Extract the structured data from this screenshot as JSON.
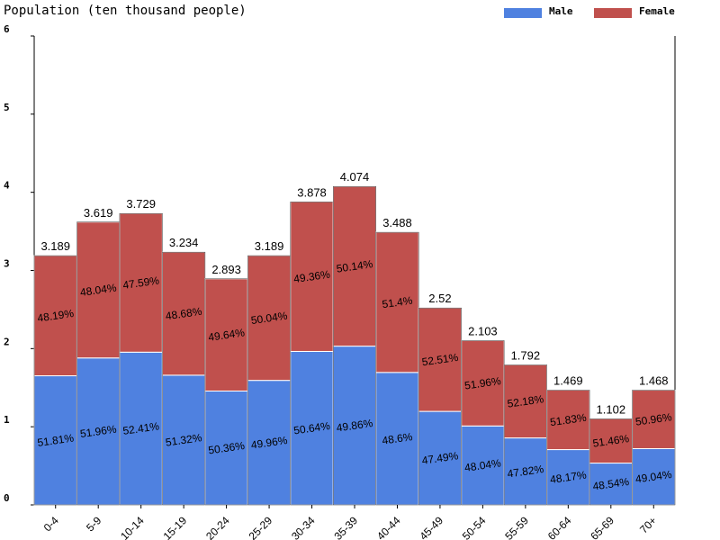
{
  "chart_data": {
    "type": "bar",
    "stacked": true,
    "title": "Population (ten thousand people)",
    "xlabel": "",
    "ylabel": "",
    "ylim": [
      0,
      6
    ],
    "yticks": [
      "0",
      "1",
      "2",
      "3",
      "4",
      "5",
      "6"
    ],
    "categories": [
      "0-4",
      "5-9",
      "10-14",
      "15-19",
      "20-24",
      "25-29",
      "30-34",
      "35-39",
      "40-44",
      "45-49",
      "50-54",
      "55-59",
      "60-64",
      "65-69",
      "70+"
    ],
    "totals": [
      "3.189",
      "3.619",
      "3.729",
      "3.234",
      "2.893",
      "3.189",
      "3.878",
      "4.074",
      "3.488",
      "2.52",
      "2.103",
      "1.792",
      "1.469",
      "1.102",
      "1.468"
    ],
    "series": [
      {
        "name": "Male",
        "color": "#4f81e0",
        "percent_labels": [
          "51.81%",
          "51.96%",
          "52.41%",
          "51.32%",
          "50.36%",
          "49.96%",
          "50.64%",
          "49.86%",
          "48.6%",
          "47.49%",
          "48.04%",
          "47.82%",
          "48.17%",
          "48.54%",
          "49.04%"
        ]
      },
      {
        "name": "Female",
        "color": "#c0504d",
        "percent_labels": [
          "48.19%",
          "48.04%",
          "47.59%",
          "48.68%",
          "49.64%",
          "50.04%",
          "49.36%",
          "50.14%",
          "51.4%",
          "52.51%",
          "51.96%",
          "52.18%",
          "51.83%",
          "51.46%",
          "50.96%"
        ]
      }
    ],
    "legend_position": "top-right",
    "grid": false
  }
}
